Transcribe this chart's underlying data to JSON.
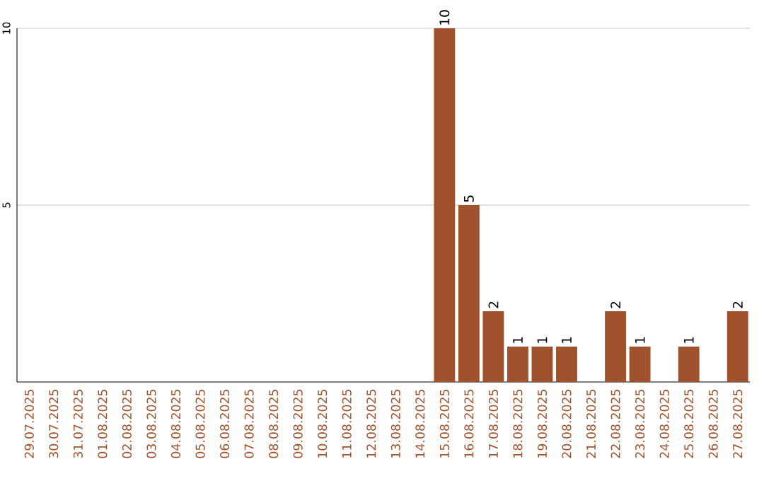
{
  "chart_data": {
    "type": "bar",
    "categories": [
      "29.07.2025",
      "30.07.2025",
      "31.07.2025",
      "01.08.2025",
      "02.08.2025",
      "03.08.2025",
      "04.08.2025",
      "05.08.2025",
      "06.08.2025",
      "07.08.2025",
      "08.08.2025",
      "09.08.2025",
      "10.08.2025",
      "11.08.2025",
      "12.08.2025",
      "13.08.2025",
      "14.08.2025",
      "15.08.2025",
      "16.08.2025",
      "17.08.2025",
      "18.08.2025",
      "19.08.2025",
      "20.08.2025",
      "21.08.2025",
      "22.08.2025",
      "23.08.2025",
      "24.08.2025",
      "25.08.2025",
      "26.08.2025",
      "27.08.2025"
    ],
    "values": [
      0,
      0,
      0,
      0,
      0,
      0,
      0,
      0,
      0,
      0,
      0,
      0,
      0,
      0,
      0,
      0,
      0,
      10,
      5,
      2,
      1,
      1,
      1,
      0,
      2,
      1,
      0,
      1,
      0,
      2
    ],
    "value_labels": [
      null,
      null,
      null,
      null,
      null,
      null,
      null,
      null,
      null,
      null,
      null,
      null,
      null,
      null,
      null,
      null,
      null,
      "10",
      "5",
      "2",
      "1",
      "1",
      "1",
      null,
      "2",
      "1",
      null,
      "1",
      null,
      "2"
    ],
    "color": "#a0522d",
    "ylim": [
      0,
      10
    ],
    "yticks": [
      5,
      10
    ],
    "grid": "y"
  }
}
